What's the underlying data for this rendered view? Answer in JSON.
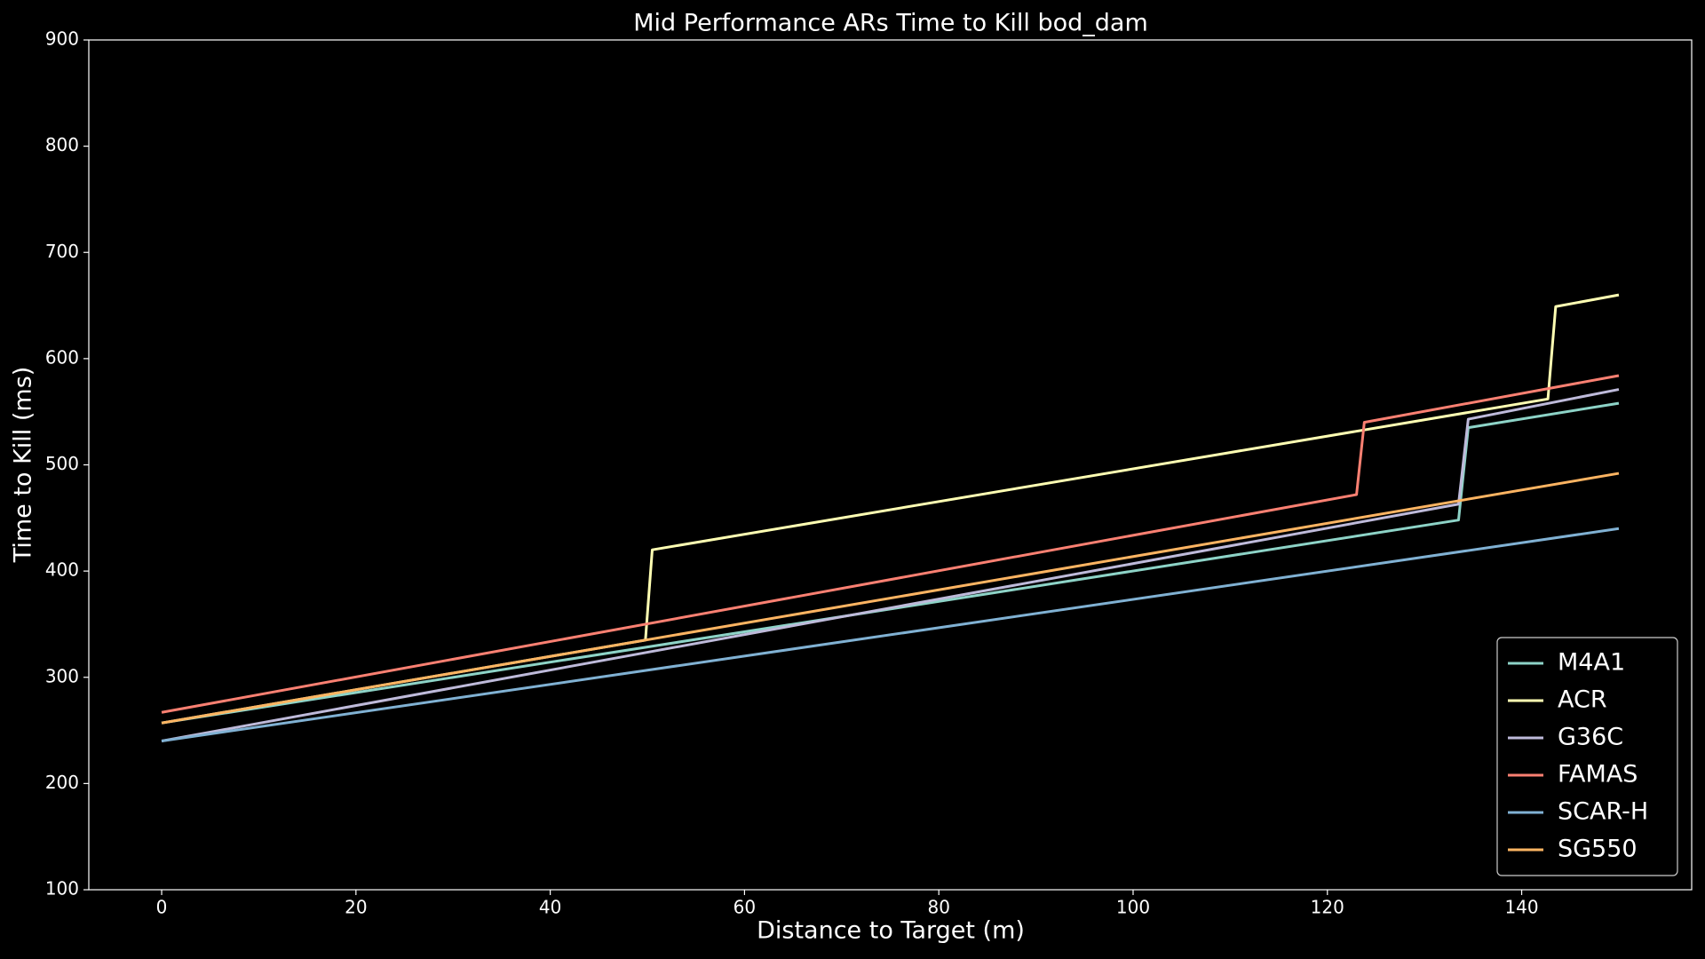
{
  "chart_data": {
    "type": "line",
    "title": "Mid Performance ARs Time to Kill bod_dam",
    "x_label": "Distance to Target (m)",
    "y_label": "Time to Kill (ms)",
    "xlim": [
      -7.5,
      157.5
    ],
    "ylim": [
      100,
      900
    ],
    "xticks": [
      0,
      20,
      40,
      60,
      80,
      100,
      120,
      140
    ],
    "yticks": [
      100,
      200,
      300,
      400,
      500,
      600,
      700,
      800,
      900
    ],
    "grid": false,
    "legend": "lower right",
    "series": [
      {
        "name": "M4A1",
        "color": "#8dd3c7",
        "x": [
          0,
          133.5,
          134.5,
          150
        ],
        "values": [
          257,
          448,
          535,
          558
        ]
      },
      {
        "name": "ACR",
        "color": "#ffffb3",
        "x": [
          0,
          49.8,
          50.5,
          142.7,
          143.5,
          150
        ],
        "values": [
          257,
          335,
          420,
          562,
          649,
          660
        ]
      },
      {
        "name": "G36C",
        "color": "#bebada",
        "x": [
          0,
          133.5,
          134.5,
          150
        ],
        "values": [
          240,
          463,
          543,
          571
        ]
      },
      {
        "name": "FAMAS",
        "color": "#fb8072",
        "x": [
          0,
          123,
          123.8,
          150
        ],
        "values": [
          267,
          472,
          540,
          584
        ]
      },
      {
        "name": "SCAR-H",
        "color": "#80b1d3",
        "x": [
          0,
          150
        ],
        "values": [
          240,
          440
        ]
      },
      {
        "name": "SG550",
        "color": "#fdb462",
        "x": [
          0,
          150
        ],
        "values": [
          257,
          492
        ]
      }
    ]
  }
}
